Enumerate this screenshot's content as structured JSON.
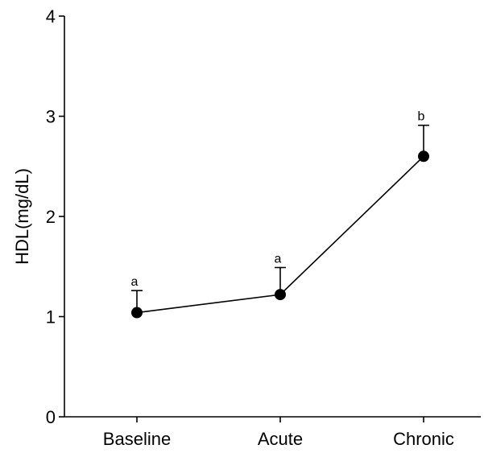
{
  "chart_data": {
    "type": "line",
    "categories": [
      "Baseline",
      "Acute",
      "Chronic"
    ],
    "values": [
      1.04,
      1.22,
      2.6
    ],
    "error_upper": [
      0.22,
      0.27,
      0.31
    ],
    "annotations": [
      "a",
      "a",
      "b"
    ],
    "title": "",
    "xlabel": "",
    "ylabel": "HDL(mg/dL)",
    "ylim": [
      0,
      4
    ],
    "yticks": [
      "0",
      "1",
      "2",
      "3",
      "4"
    ],
    "grid": false,
    "legend": "none",
    "color": "#000000"
  }
}
